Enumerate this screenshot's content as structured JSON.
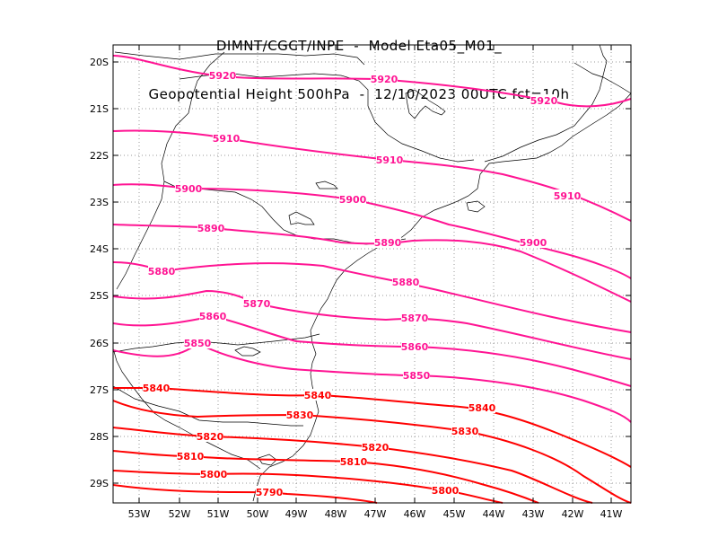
{
  "title": {
    "line1": "DIMNT/CGCT/INPE  -  Model Eta05_M01_",
    "line2": "Geopotential Height 500hPa  -  12/10/2023 00UTC fct=10h"
  },
  "map": {
    "type": "contour",
    "lon_labels": [
      "53W",
      "52W",
      "51W",
      "50W",
      "49W",
      "48W",
      "47W",
      "46W",
      "45W",
      "44W",
      "43W",
      "42W",
      "41W"
    ],
    "lat_labels": [
      "20S",
      "21S",
      "22S",
      "23S",
      "24S",
      "25S",
      "26S",
      "27S",
      "28S",
      "29S"
    ],
    "gridlines": "dotted",
    "colors": {
      "magenta": "#ff1493",
      "red": "#ff0000"
    },
    "contours": [
      {
        "value": "5920",
        "labels": [
          "5920",
          "5920",
          "5920"
        ]
      },
      {
        "value": "5910",
        "labels": [
          "5910",
          "5910",
          "5910"
        ]
      },
      {
        "value": "5900",
        "labels": [
          "5900",
          "5900",
          "5900"
        ]
      },
      {
        "value": "5890",
        "labels": [
          "5890",
          "5890"
        ]
      },
      {
        "value": "5880",
        "labels": [
          "5880",
          "5880"
        ]
      },
      {
        "value": "5870",
        "labels": [
          "5870",
          "5870"
        ]
      },
      {
        "value": "5860",
        "labels": [
          "5860",
          "5860"
        ]
      },
      {
        "value": "5850",
        "labels": [
          "5850",
          "5850"
        ]
      },
      {
        "value": "5840",
        "labels": [
          "5840",
          "5840",
          "5840"
        ]
      },
      {
        "value": "5830",
        "labels": [
          "5830",
          "5830"
        ]
      },
      {
        "value": "5820",
        "labels": [
          "5820",
          "5820"
        ]
      },
      {
        "value": "5810",
        "labels": [
          "5810",
          "5810"
        ]
      },
      {
        "value": "5800",
        "labels": [
          "5800",
          "5800"
        ]
      },
      {
        "value": "5790",
        "labels": [
          "5790"
        ]
      }
    ]
  }
}
